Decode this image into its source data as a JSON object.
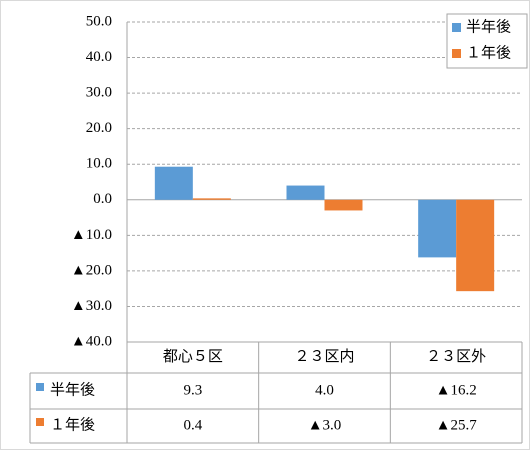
{
  "chart_data": {
    "type": "bar",
    "categories": [
      "都心５区",
      "２３区内",
      "２３区外"
    ],
    "series": [
      {
        "name": "半年後",
        "color": "#5b9bd5",
        "values": [
          9.3,
          4.0,
          -16.2
        ],
        "value_labels": [
          "9.3",
          "4.0",
          "▲16.2"
        ]
      },
      {
        "name": "１年後",
        "color": "#ed7d31",
        "values": [
          0.4,
          -3.0,
          -25.7
        ],
        "value_labels": [
          "0.4",
          "▲3.0",
          "▲25.7"
        ]
      }
    ],
    "ylim": [
      -40,
      50
    ],
    "yticks": [
      {
        "value": 50,
        "label": "50.0"
      },
      {
        "value": 40,
        "label": "40.0"
      },
      {
        "value": 30,
        "label": "30.0"
      },
      {
        "value": 20,
        "label": "20.0"
      },
      {
        "value": 10,
        "label": "10.0"
      },
      {
        "value": 0,
        "label": "0.0"
      },
      {
        "value": -10,
        "label": "▲10.0"
      },
      {
        "value": -20,
        "label": "▲20.0"
      },
      {
        "value": -30,
        "label": "▲30.0"
      },
      {
        "value": -40,
        "label": "▲40.0"
      }
    ],
    "grid": true,
    "legend": "top-right"
  }
}
